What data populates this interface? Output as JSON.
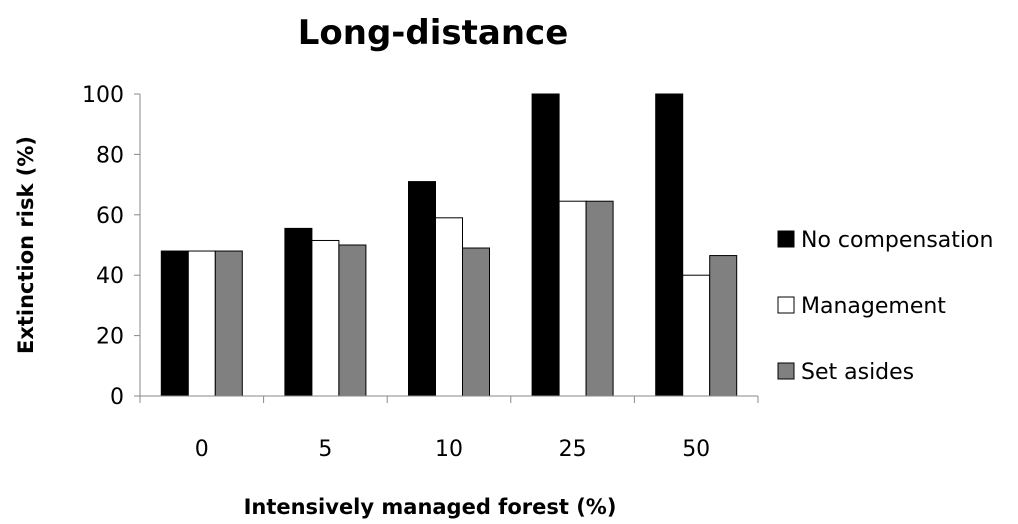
{
  "chart_data": {
    "type": "bar",
    "title": "Long-distance",
    "xlabel": "Intensively managed forest (%)",
    "ylabel": "Extinction risk (%)",
    "categories": [
      "0",
      "5",
      "10",
      "25",
      "50"
    ],
    "ylim": [
      0,
      100
    ],
    "yticks": [
      "0",
      "20",
      "40",
      "60",
      "80",
      "100"
    ],
    "grid": false,
    "legend_position": "right",
    "series": [
      {
        "name": "No compensation",
        "color": "#000000",
        "values": [
          48,
          55.5,
          71,
          100,
          100
        ]
      },
      {
        "name": "Management",
        "color": "#ffffff",
        "values": [
          48,
          51.5,
          59,
          64.5,
          40
        ]
      },
      {
        "name": "Set asides",
        "color": "#808080",
        "values": [
          48,
          50,
          49,
          64.5,
          46.5
        ]
      }
    ]
  }
}
